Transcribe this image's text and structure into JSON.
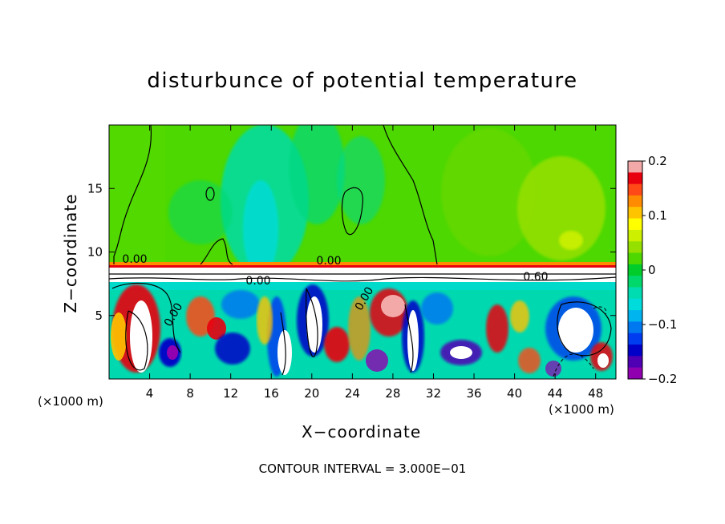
{
  "chart_data": {
    "type": "heatmap",
    "title": "disturbunce of potential temperature",
    "xlabel": "X−coordinate",
    "ylabel": "Z−coordinate",
    "x_unit_label": "(×1000 m)",
    "xlim": [
      0,
      50
    ],
    "ylim": [
      0,
      20
    ],
    "xticks": [
      4,
      8,
      12,
      16,
      20,
      24,
      28,
      32,
      36,
      40,
      44,
      48
    ],
    "yticks": [
      5,
      10,
      15
    ],
    "colorbar": {
      "range": [
        -0.2,
        0.2
      ],
      "tick_values": [
        0.2,
        0.1,
        0,
        -0.1,
        -0.2
      ],
      "tick_labels": [
        "0.2",
        "0.1",
        "0",
        "−0.1",
        "−0.2"
      ],
      "colors": [
        "#f4a9a9",
        "#e8000f",
        "#ff4a18",
        "#ff8c00",
        "#ffc400",
        "#ffff00",
        "#ccf000",
        "#96e000",
        "#4fd800",
        "#00cc2a",
        "#00d86c",
        "#00dcb2",
        "#00dcdc",
        "#00b4f0",
        "#0078f0",
        "#003cf0",
        "#0000c8",
        "#5000b4",
        "#9000b0"
      ]
    },
    "contour_labels": [
      "0.00",
      "0.00",
      "0.00",
      "0.00",
      "0.00",
      "0.60"
    ],
    "grid": false,
    "footnote": "CONTOUR INTERVAL = 3.000E−01"
  }
}
